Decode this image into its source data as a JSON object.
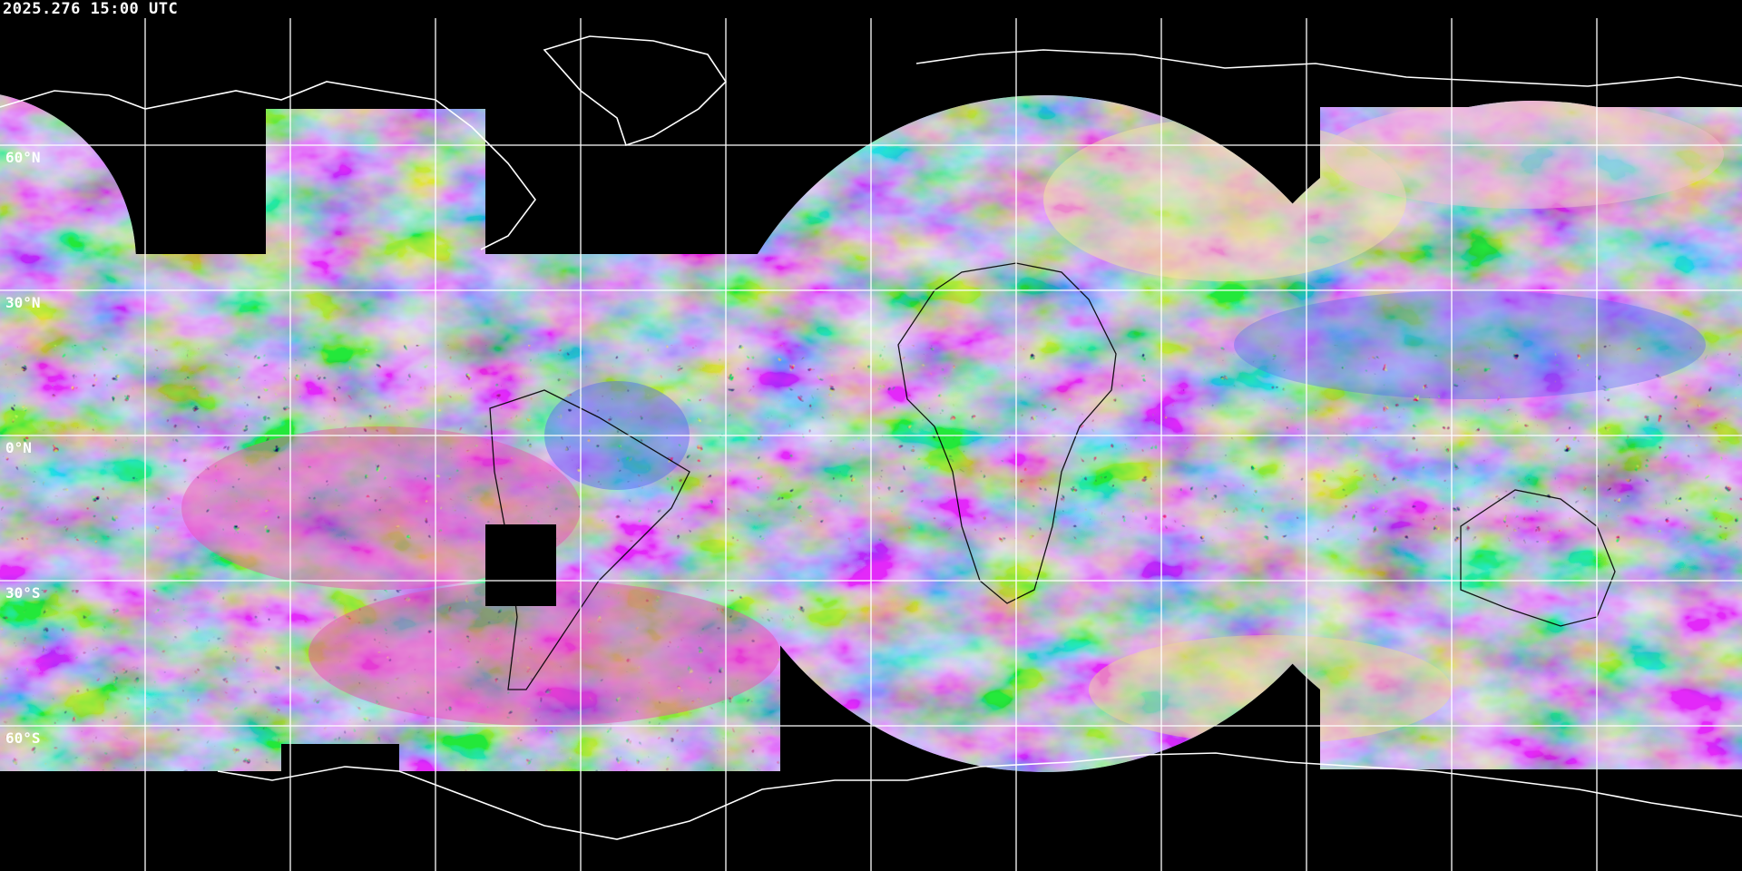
{
  "timestamp": "2025.276 15:00 UTC",
  "projection": "equirectangular",
  "grid_spacing_degrees": 30,
  "latitude_labels": [
    "60°N",
    "30°N",
    "0°N",
    "30°S",
    "60°S"
  ],
  "colors": {
    "background": "#000000",
    "gridlines": "#ffffff",
    "coastlines_over_black": "#ffffff",
    "coastlines_over_imagery": "#000000",
    "imagery_palette": [
      "#8fa6e8",
      "#e84fb0",
      "#f0e08a",
      "#f07a3a",
      "#9be85a",
      "#5a6ef0",
      "#f4c0d0"
    ]
  }
}
